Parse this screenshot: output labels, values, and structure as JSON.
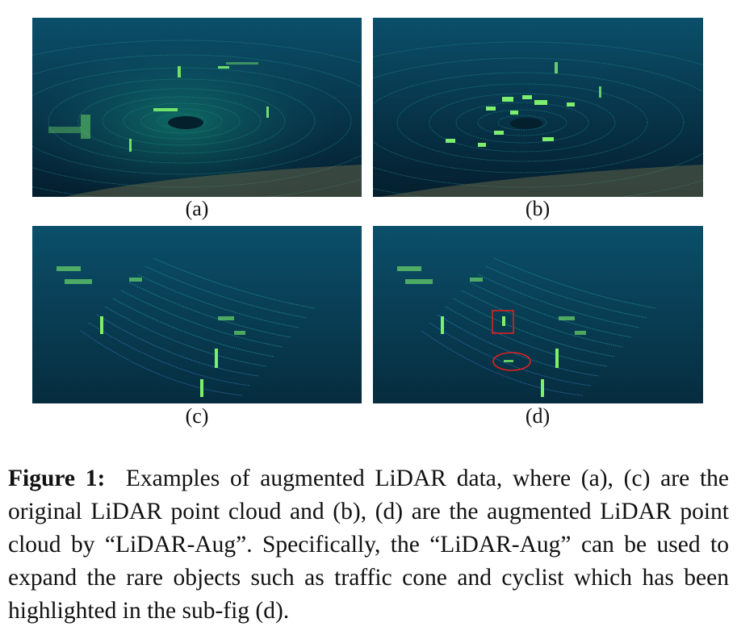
{
  "figure": {
    "panels": [
      {
        "id": "a",
        "label": "(a)"
      },
      {
        "id": "b",
        "label": "(b)"
      },
      {
        "id": "c",
        "label": "(c)"
      },
      {
        "id": "d",
        "label": "(d)"
      }
    ],
    "caption": {
      "prefix": "Figure 1:",
      "text": "Examples of augmented LiDAR data, where (a), (c) are the original LiDAR point cloud and (b), (d) are the augmented LiDAR point cloud by “LiDAR-Aug”. Specifically, the “LiDAR-Aug” can be used to expand the rare objects such as traffic cone and cyclist which has been highlighted in the sub-fig (d)."
    },
    "colors": {
      "background_dark": "#06283a",
      "background_light": "#0a4a66",
      "scan_line": "#1f8a86",
      "scan_line_near": "#2b6fb0",
      "object_points": "#7cf06a",
      "highlight": "#e02020"
    }
  }
}
